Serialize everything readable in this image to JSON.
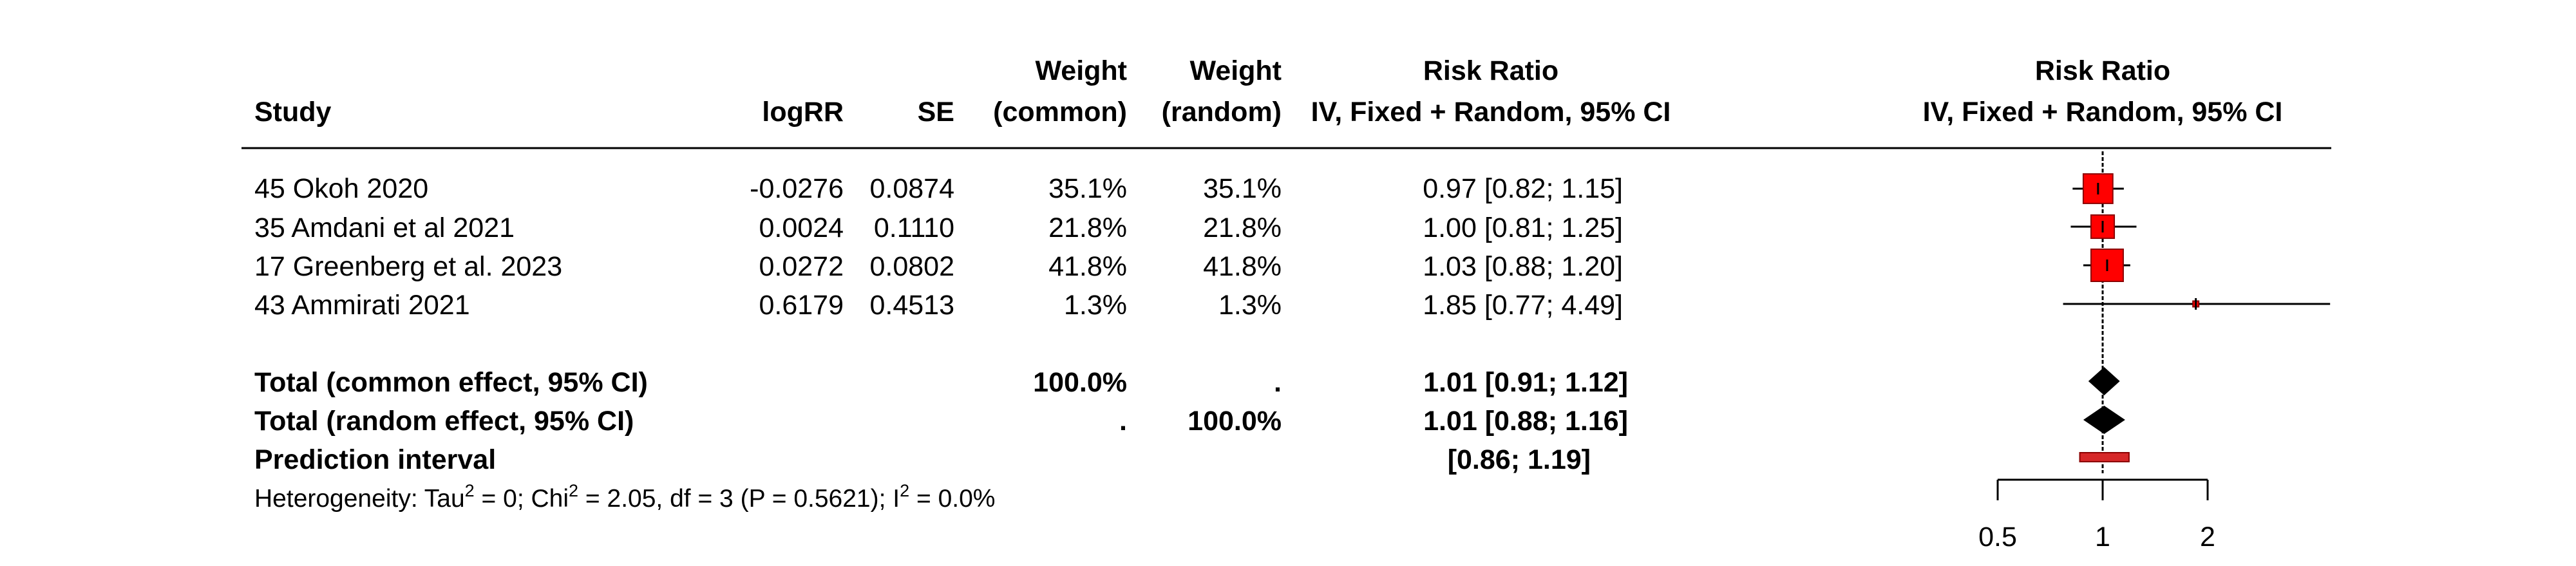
{
  "chart_data": {
    "type": "forest",
    "headers": {
      "study": "Study",
      "logrr": "logRR",
      "se": "SE",
      "weight_common": [
        "Weight",
        "(common)"
      ],
      "weight_random": [
        "Weight",
        "(random)"
      ],
      "rr_text": [
        "Risk Ratio",
        "IV, Fixed + Random, 95% CI"
      ],
      "rr_plot": [
        "Risk Ratio",
        "IV, Fixed + Random, 95% CI"
      ]
    },
    "studies": [
      {
        "name": "45 Okoh 2020",
        "logrr": "-0.0276",
        "se": "0.0874",
        "w_common": "35.1%",
        "w_random": "35.1%",
        "ci_text": "0.97 [0.82; 1.15]",
        "rr": 0.97,
        "lower": 0.82,
        "upper": 1.15,
        "weight": 35.1
      },
      {
        "name": "35 Amdani et al 2021",
        "logrr": "0.0024",
        "se": "0.1110",
        "w_common": "21.8%",
        "w_random": "21.8%",
        "ci_text": "1.00 [0.81; 1.25]",
        "rr": 1.0,
        "lower": 0.81,
        "upper": 1.25,
        "weight": 21.8
      },
      {
        "name": "17 Greenberg et al. 2023",
        "logrr": "0.0272",
        "se": "0.0802",
        "w_common": "41.8%",
        "w_random": "41.8%",
        "ci_text": "1.03 [0.88; 1.20]",
        "rr": 1.03,
        "lower": 0.88,
        "upper": 1.2,
        "weight": 41.8
      },
      {
        "name": "43 Ammirati 2021",
        "logrr": "0.6179",
        "se": "0.4513",
        "w_common": "1.3%",
        "w_random": "1.3%",
        "ci_text": "1.85 [0.77; 4.49]",
        "rr": 1.85,
        "lower": 0.77,
        "upper": 4.49,
        "weight": 1.3
      }
    ],
    "common": {
      "label": "Total (common effect, 95% CI)",
      "w_common": "100.0%",
      "w_random": ".",
      "ci_text": "1.01 [0.91; 1.12]",
      "rr": 1.01,
      "lower": 0.91,
      "upper": 1.12
    },
    "random": {
      "label": "Total (random effect, 95% CI)",
      "w_common": ".",
      "w_random": "100.0%",
      "ci_text": "1.01 [0.88; 1.16]",
      "rr": 1.01,
      "lower": 0.88,
      "upper": 1.16
    },
    "prediction": {
      "label": "Prediction interval",
      "ci_text": "[0.86; 1.19]",
      "lower": 0.86,
      "upper": 1.19
    },
    "heterogeneity": {
      "prefix": "Heterogeneity: Tau",
      "sup1": "2",
      "mid": " = 0; Chi",
      "sup2": "2",
      "mid2": " = 2.05, df = 3 (P = 0.5621); I",
      "sup3": "2",
      "suffix": " = 0.0%"
    },
    "axis": {
      "scale": "log",
      "ticks": [
        0.5,
        1,
        2
      ],
      "tick_labels": [
        "0.5",
        "1",
        "2"
      ],
      "ref_value": 1
    },
    "colors": {
      "box": "#ff0000",
      "box_edge": "#8b0000",
      "diamond": "#000000",
      "prediction": "#d62728",
      "line": "#000000"
    }
  }
}
